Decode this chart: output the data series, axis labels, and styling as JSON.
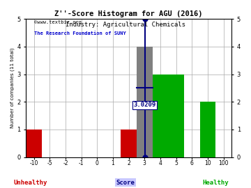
{
  "title": "Z''-Score Histogram for AGU (2016)",
  "subtitle": "Industry: Agricultural Chemicals",
  "watermark1": "©www.textbiz.org",
  "watermark2": "The Research Foundation of SUNY",
  "xlabel_center": "Score",
  "xlabel_left": "Unhealthy",
  "xlabel_right": "Healthy",
  "ylabel": "Number of companies (11 total)",
  "xtick_labels": [
    "-10",
    "-5",
    "-2",
    "-1",
    "0",
    "1",
    "2",
    "3",
    "4",
    "5",
    "6",
    "10",
    "100"
  ],
  "xtick_positions": [
    0,
    1,
    2,
    3,
    4,
    5,
    6,
    7,
    8,
    9,
    10,
    11,
    12
  ],
  "bars": [
    {
      "x_left": -0.5,
      "x_right": 0.5,
      "height": 1,
      "color": "#cc0000"
    },
    {
      "x_left": 5.5,
      "x_right": 6.5,
      "height": 1,
      "color": "#cc0000"
    },
    {
      "x_left": 6.5,
      "x_right": 7.5,
      "height": 4,
      "color": "#808080"
    },
    {
      "x_left": 7.5,
      "x_right": 9.5,
      "height": 3,
      "color": "#00aa00"
    },
    {
      "x_left": 10.5,
      "x_right": 11.5,
      "height": 2,
      "color": "#00aa00"
    }
  ],
  "marker_x": 7.0209,
  "marker_label": "3.0209",
  "crossbar_x1": 6.5,
  "crossbar_x2": 7.5,
  "ylim": [
    0,
    5
  ],
  "xlim": [
    -0.5,
    12.5
  ],
  "grid_color": "#aaaaaa",
  "bg_color": "#ffffff",
  "title_color": "#000000",
  "subtitle_color": "#000000",
  "watermark1_color": "#000000",
  "watermark2_color": "#0000cc",
  "unhealthy_color": "#cc0000",
  "healthy_color": "#00aa00",
  "score_color": "#000080",
  "score_bg": "#c8c8ff",
  "marker_line_color": "#000080",
  "marker_dot_color": "#000080"
}
